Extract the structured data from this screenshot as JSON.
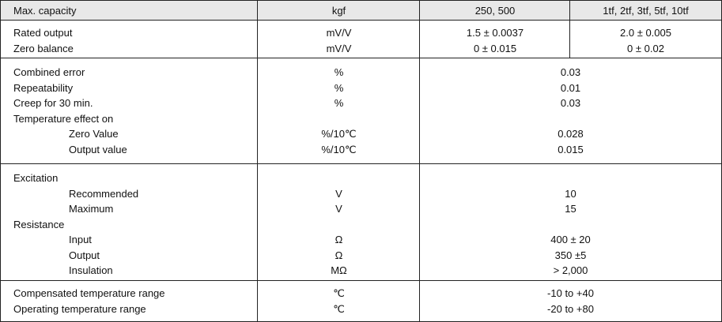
{
  "header": {
    "label": "Max. capacity",
    "unit": "kgf",
    "col_a": "250, 500",
    "col_b": "1tf, 2tf, 3tf, 5tf, 10tf"
  },
  "sections": [
    {
      "rows": [
        {
          "label": "Rated output",
          "unit": "mV/V",
          "a": "1.5 ± 0.0037",
          "b": "2.0 ± 0.005"
        },
        {
          "label": "Zero balance",
          "unit": "mV/V",
          "a": "0 ± 0.015",
          "b": "0 ± 0.02"
        }
      ]
    },
    {
      "rows": [
        {
          "label": "Combined error",
          "unit": "%",
          "value": "0.03"
        },
        {
          "label": "Repeatability",
          "unit": "%",
          "value": "0.01"
        },
        {
          "label": "Creep for 30 min.",
          "unit": "%",
          "value": "0.03"
        },
        {
          "label": "Temperature effect on",
          "unit": "",
          "value": ""
        },
        {
          "label": "Zero Value",
          "unit": "%/10℃",
          "value": "0.028",
          "indent": true
        },
        {
          "label": "Output value",
          "unit": "%/10℃",
          "value": "0.015",
          "indent": true
        }
      ]
    },
    {
      "rows": [
        {
          "label": "Excitation",
          "unit": "",
          "value": ""
        },
        {
          "label": "Recommended",
          "unit": "V",
          "value": "10",
          "indent": true
        },
        {
          "label": "Maximum",
          "unit": "V",
          "value": "15",
          "indent": true
        },
        {
          "label": "Resistance",
          "unit": "",
          "value": ""
        },
        {
          "label": "Input",
          "unit": "Ω",
          "value": "400 ± 20",
          "indent": true
        },
        {
          "label": "Output",
          "unit": "Ω",
          "value": "350 ±5",
          "indent": true
        },
        {
          "label": "Insulation",
          "unit": "MΩ",
          "value": "> 2,000",
          "indent": true
        }
      ]
    },
    {
      "rows": [
        {
          "label": "Compensated temperature range",
          "unit": "℃",
          "value": "-10 to +40"
        },
        {
          "label": "Operating temperature range",
          "unit": "℃",
          "value": "-20 to +80"
        }
      ]
    }
  ]
}
